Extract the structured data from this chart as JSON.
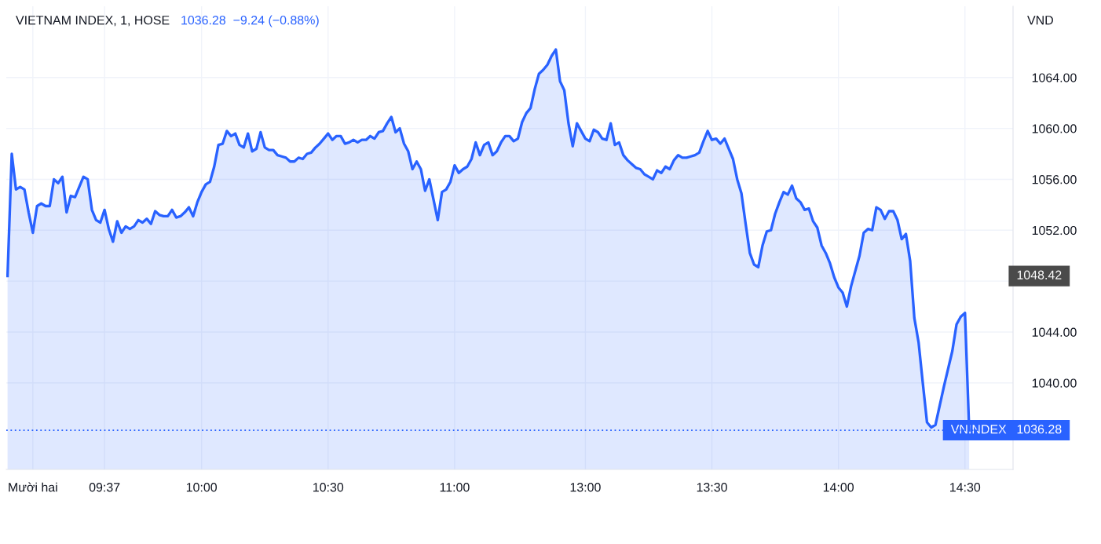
{
  "chart_data": {
    "type": "area",
    "title": "VIETNAM INDEX, 1, HOSE",
    "subtitle": "1036.28  −9.24 (−0.88%)",
    "ylabel": "VND",
    "categories": [
      null,
      null,
      null,
      null,
      null,
      null,
      "Mười hai",
      null,
      null,
      null,
      null,
      null,
      null,
      null,
      null,
      null,
      null,
      null,
      null,
      null,
      null,
      null,
      null,
      "09:37",
      null,
      null,
      null,
      null,
      null,
      null,
      null,
      null,
      null,
      null,
      null,
      null,
      null,
      null,
      null,
      null,
      null,
      null,
      null,
      null,
      null,
      null,
      "10:00",
      null,
      null,
      null,
      null,
      null,
      null,
      null,
      null,
      null,
      null,
      null,
      null,
      null,
      null,
      null,
      null,
      null,
      null,
      null,
      null,
      null,
      null,
      null,
      null,
      null,
      null,
      null,
      null,
      null,
      "10:30",
      null,
      null,
      null,
      null,
      null,
      null,
      null,
      null,
      null,
      null,
      null,
      null,
      null,
      null,
      null,
      null,
      null,
      null,
      null,
      null,
      null,
      null,
      null,
      null,
      null,
      null,
      null,
      null,
      null,
      "11:00",
      null,
      null,
      null,
      null,
      null,
      null,
      null,
      null,
      null,
      null,
      null,
      null,
      null,
      null,
      null,
      null,
      null,
      null,
      null,
      null,
      null,
      null,
      null,
      null,
      null,
      null,
      null,
      null,
      null,
      null,
      "13:00",
      null,
      null,
      null,
      null,
      null,
      null,
      null,
      null,
      null,
      null,
      null,
      null,
      null,
      null,
      null,
      null,
      null,
      null,
      null,
      null,
      null,
      null,
      null,
      null,
      null,
      null,
      null,
      null,
      null,
      "13:30",
      null,
      null,
      null,
      null,
      null,
      null,
      null,
      null,
      null,
      null,
      null,
      null,
      null,
      null,
      null,
      null,
      null,
      null,
      null,
      null,
      null,
      null,
      null,
      null,
      null,
      null,
      null,
      null,
      null,
      "14:00",
      null,
      null,
      null,
      null,
      null,
      null,
      null,
      null,
      null,
      null,
      null,
      null,
      null,
      null,
      null,
      null,
      null,
      null,
      null,
      null,
      null,
      null,
      null,
      null,
      null,
      null,
      null,
      null,
      null,
      "14:30",
      null
    ],
    "series": [
      {
        "name": "VNINDEX",
        "color": "#2962ff",
        "values": [
          1048.4,
          1058.0,
          1055.2,
          1055.4,
          1055.2,
          1053.4,
          1051.8,
          1053.9,
          1054.1,
          1053.9,
          1053.9,
          1056.0,
          1055.7,
          1056.2,
          1053.4,
          1054.7,
          1054.6,
          1055.4,
          1056.2,
          1056.0,
          1053.6,
          1052.8,
          1052.6,
          1053.6,
          1052.1,
          1051.1,
          1052.7,
          1051.8,
          1052.3,
          1052.1,
          1052.3,
          1052.8,
          1052.6,
          1052.9,
          1052.5,
          1053.5,
          1053.2,
          1053.1,
          1053.1,
          1053.6,
          1053.0,
          1053.1,
          1053.4,
          1053.8,
          1053.1,
          1054.2,
          1055.0,
          1055.6,
          1055.8,
          1057.0,
          1058.7,
          1058.8,
          1059.8,
          1059.4,
          1059.6,
          1058.7,
          1058.5,
          1059.6,
          1058.2,
          1058.4,
          1059.7,
          1058.5,
          1058.3,
          1058.3,
          1057.9,
          1057.8,
          1057.7,
          1057.4,
          1057.4,
          1057.7,
          1057.6,
          1058.0,
          1058.1,
          1058.5,
          1058.8,
          1059.2,
          1059.6,
          1059.1,
          1059.4,
          1059.4,
          1058.8,
          1058.9,
          1059.1,
          1058.9,
          1059.1,
          1059.1,
          1059.4,
          1059.2,
          1059.7,
          1059.8,
          1060.4,
          1060.9,
          1059.7,
          1060.0,
          1058.8,
          1058.2,
          1056.8,
          1057.4,
          1056.8,
          1055.1,
          1056.0,
          1054.4,
          1052.8,
          1055.0,
          1055.2,
          1055.8,
          1057.1,
          1056.5,
          1056.8,
          1057.0,
          1057.6,
          1058.9,
          1057.9,
          1058.7,
          1058.9,
          1057.9,
          1058.2,
          1058.9,
          1059.4,
          1059.4,
          1059.0,
          1059.2,
          1060.5,
          1061.2,
          1061.6,
          1063.1,
          1064.3,
          1064.6,
          1065.0,
          1065.7,
          1066.2,
          1063.7,
          1063.0,
          1060.4,
          1058.6,
          1060.4,
          1059.8,
          1059.2,
          1059.0,
          1059.9,
          1059.7,
          1059.2,
          1059.1,
          1060.4,
          1058.7,
          1058.9,
          1057.9,
          1057.5,
          1057.2,
          1056.9,
          1056.8,
          1056.4,
          1056.2,
          1056.0,
          1056.7,
          1056.5,
          1057.0,
          1056.8,
          1057.5,
          1057.9,
          1057.7,
          1057.7,
          1057.8,
          1057.9,
          1058.1,
          1059.0,
          1059.8,
          1059.1,
          1059.2,
          1058.8,
          1059.2,
          1058.4,
          1057.6,
          1056.0,
          1054.9,
          1052.5,
          1050.2,
          1049.3,
          1049.1,
          1050.8,
          1051.9,
          1052.0,
          1053.3,
          1054.2,
          1055.0,
          1054.8,
          1055.5,
          1054.5,
          1054.2,
          1053.6,
          1053.7,
          1052.7,
          1052.2,
          1050.8,
          1050.2,
          1049.4,
          1048.3,
          1047.5,
          1047.1,
          1046.0,
          1047.6,
          1048.8,
          1050.0,
          1051.8,
          1052.1,
          1052.0,
          1053.8,
          1053.6,
          1052.9,
          1053.5,
          1053.5,
          1052.8,
          1051.3,
          1051.7,
          1049.6,
          1045.1,
          1043.2,
          1040.0,
          1036.9,
          1036.5,
          1036.7,
          1038.2,
          1039.7,
          1041.1,
          1042.5,
          1044.6,
          1045.2,
          1045.5,
          1036.28
        ]
      }
    ],
    "ylim": [
      1033.2,
      1069.6
    ],
    "yticks": [
      {
        "value": 1040,
        "label": "1040.00"
      },
      {
        "value": 1044,
        "label": "1044.00"
      },
      {
        "value": 1048,
        "label": null
      },
      {
        "value": 1052,
        "label": "1052.00"
      },
      {
        "value": 1056,
        "label": "1056.00"
      },
      {
        "value": 1060,
        "label": "1060.00"
      },
      {
        "value": 1064,
        "label": "1064.00"
      }
    ],
    "annotations": [
      "1048.42"
    ],
    "ref_lines": [
      {
        "axis": "y",
        "value": 1036.28,
        "label": "1036.28",
        "color": "#2962ff",
        "line_style": "dotted"
      }
    ],
    "grid": true,
    "line_style": "solid",
    "marker": "none"
  }
}
